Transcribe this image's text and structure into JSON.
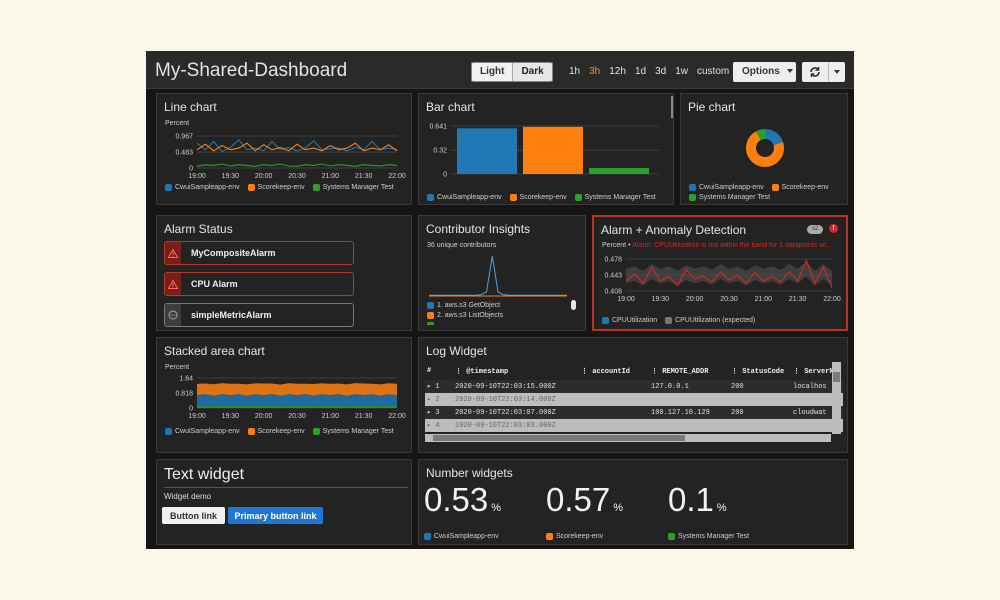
{
  "dashboard": {
    "title": "My-Shared-Dashboard",
    "theme_light": "Light",
    "theme_dark": "Dark",
    "time_ranges": [
      "1h",
      "3h",
      "12h",
      "1d",
      "3d",
      "1w"
    ],
    "active_time_range": "3h",
    "custom_label": "custom",
    "options_label": "Options",
    "accent_color": "#f0932b"
  },
  "series_names": [
    "CwuiSampleapp-env",
    "Scorekeep-env",
    "Systems Manager Test"
  ],
  "series_colors": [
    "#1f77b4",
    "#ff7f0e",
    "#2ca02c"
  ],
  "line_widget": {
    "title": "Line chart",
    "ylabel": "Percent",
    "chart_data": {
      "type": "line",
      "ylabel": "Percent",
      "ylim": [
        0,
        0.967
      ],
      "yticks": [
        "0.967",
        "0.483",
        "0"
      ],
      "x_ticks": [
        "19:00",
        "19:30",
        "20:00",
        "20:30",
        "21:00",
        "21:30",
        "22:00"
      ],
      "x": [
        0,
        1,
        2,
        3,
        4,
        5,
        6,
        7,
        8,
        9,
        10,
        11,
        12,
        13,
        14,
        15,
        16,
        17,
        18,
        19,
        20,
        21,
        22,
        23,
        24
      ],
      "series": [
        {
          "name": "CwuiSampleapp-env",
          "values": [
            0.75,
            0.55,
            0.8,
            0.5,
            0.62,
            0.85,
            0.55,
            0.6,
            0.52,
            0.8,
            0.56,
            0.62,
            0.52,
            0.6,
            0.82,
            0.55,
            0.58,
            0.6,
            0.52,
            0.62,
            0.56,
            0.8,
            0.56,
            0.6,
            0.55
          ]
        },
        {
          "name": "Scorekeep-env",
          "values": [
            0.55,
            0.72,
            0.52,
            0.68,
            0.55,
            0.6,
            0.75,
            0.52,
            0.7,
            0.55,
            0.62,
            0.52,
            0.72,
            0.55,
            0.6,
            0.52,
            0.68,
            0.55,
            0.6,
            0.75,
            0.52,
            0.6,
            0.55,
            0.7,
            0.52
          ]
        },
        {
          "name": "Systems Manager Test",
          "values": [
            0.05,
            0.1,
            0.08,
            0.12,
            0.06,
            0.1,
            0.08,
            0.05,
            0.1,
            0.08,
            0.12,
            0.06,
            0.05,
            0.1,
            0.08,
            0.12,
            0.06,
            0.1,
            0.08,
            0.05,
            0.1,
            0.08,
            0.06,
            0.1,
            0.08
          ]
        }
      ]
    }
  },
  "bar_widget": {
    "title": "Bar chart",
    "chart_data": {
      "type": "bar",
      "categories": [
        "CwuiSampleapp-env",
        "Scorekeep-env",
        "Systems Manager Test"
      ],
      "values": [
        0.61,
        0.63,
        0.08
      ],
      "ylim": [
        0,
        0.641
      ],
      "yticks": [
        "0.641",
        "0.32",
        "0"
      ]
    }
  },
  "pie_widget": {
    "title": "Pie chart",
    "chart_data": {
      "type": "pie",
      "categories": [
        "CwuiSampleapp-env",
        "Scorekeep-env",
        "Systems Manager Test"
      ],
      "values": [
        0.2,
        0.72,
        0.08
      ]
    }
  },
  "alarm_status": {
    "title": "Alarm Status",
    "alarms": [
      {
        "name": "MyCompositeAlarm",
        "state": "alarm"
      },
      {
        "name": "CPU Alarm",
        "state": "alarm"
      },
      {
        "name": "simpleMetricAlarm",
        "state": "insufficient"
      }
    ]
  },
  "contributor_insights": {
    "title": "Contributor Insights",
    "subtitle": "36 unique contributors",
    "legend": [
      "1. aws.s3 GetObject",
      "2. aws.s3 ListObjects"
    ],
    "legend_colors": [
      "#1f77b4",
      "#ff7f0e"
    ],
    "chart_data": {
      "type": "line",
      "series": [
        {
          "name": "1. aws.s3 GetObject",
          "values": [
            0.02,
            0.02,
            0.02,
            0.02,
            0.02,
            0.02,
            0.02,
            0.02,
            0.02,
            0.03,
            0.1,
            1.0,
            0.1,
            0.03,
            0.02,
            0.02,
            0.02,
            0.02,
            0.02,
            0.02,
            0.02,
            0.02,
            0.02,
            0.02,
            0.02
          ]
        },
        {
          "name": "2. aws.s3 ListObjects",
          "values": [
            0,
            0,
            0,
            0,
            0,
            0,
            0,
            0,
            0,
            0,
            0,
            0,
            0,
            0,
            0,
            0,
            0,
            0,
            0,
            0,
            0,
            0,
            0,
            0,
            0
          ]
        }
      ]
    }
  },
  "anomaly_widget": {
    "title": "Alarm + Anomaly Detection",
    "badge": "x2",
    "ylabel": "Percent",
    "alert_text": "Alarm: CPUUtilization is not within the band for 1 datapoints wi...",
    "legend": [
      "CPUUtilization",
      "CPUUtilization (expected)"
    ],
    "legend_colors": [
      "#1f77b4",
      "#777777"
    ],
    "alarm_color": "#d62728",
    "chart_data": {
      "type": "line",
      "ylabel": "Percent",
      "ylim": [
        0.408,
        0.478
      ],
      "yticks": [
        "0.478",
        "0.443",
        "0.408"
      ],
      "x_ticks": [
        "19:00",
        "19:30",
        "20:00",
        "20:30",
        "21:00",
        "21:30",
        "22:00"
      ],
      "series": [
        {
          "name": "CPUUtilization",
          "values": [
            0.43,
            0.445,
            0.425,
            0.46,
            0.43,
            0.44,
            0.42,
            0.455,
            0.435,
            0.44,
            0.428,
            0.45,
            0.432,
            0.442,
            0.425,
            0.448,
            0.43,
            0.44,
            0.428,
            0.45,
            0.43,
            0.475,
            0.425,
            0.46,
            0.415
          ]
        },
        {
          "name": "CPUUtilization (expected)",
          "values": [
            0.445,
            0.45,
            0.44,
            0.455,
            0.445,
            0.45,
            0.44,
            0.452,
            0.445,
            0.45,
            0.442,
            0.455,
            0.445,
            0.45,
            0.44,
            0.452,
            0.445,
            0.45,
            0.442,
            0.455,
            0.445,
            0.46,
            0.44,
            0.455,
            0.44
          ]
        }
      ]
    }
  },
  "stacked_widget": {
    "title": "Stacked area chart",
    "ylabel": "Percent",
    "chart_data": {
      "type": "area",
      "ylabel": "Percent",
      "ylim": [
        0,
        1.64
      ],
      "yticks": [
        "1.64",
        "0.818",
        "0"
      ],
      "x_ticks": [
        "19:00",
        "19:30",
        "20:00",
        "20:30",
        "21:00",
        "21:30",
        "22:00"
      ],
      "series": [
        {
          "name": "CwuiSampleapp-env",
          "values": [
            0.6,
            0.62,
            0.58,
            0.64,
            0.6,
            0.62,
            0.58,
            0.63,
            0.6,
            0.62,
            0.58,
            0.64,
            0.6,
            0.62,
            0.58,
            0.63,
            0.6,
            0.62,
            0.58,
            0.64,
            0.6,
            0.62,
            0.58,
            0.63,
            0.6
          ]
        },
        {
          "name": "Scorekeep-env",
          "values": [
            0.62,
            0.58,
            0.64,
            0.6,
            0.63,
            0.57,
            0.62,
            0.6,
            0.64,
            0.58,
            0.62,
            0.6,
            0.63,
            0.57,
            0.64,
            0.6,
            0.62,
            0.58,
            0.63,
            0.6,
            0.64,
            0.57,
            0.62,
            0.6,
            0.63
          ]
        },
        {
          "name": "Systems Manager Test",
          "values": [
            0.1,
            0.14,
            0.08,
            0.12,
            0.1,
            0.14,
            0.09,
            0.12,
            0.1,
            0.14,
            0.08,
            0.12,
            0.1,
            0.14,
            0.09,
            0.12,
            0.1,
            0.14,
            0.08,
            0.12,
            0.1,
            0.14,
            0.09,
            0.12,
            0.1
          ]
        }
      ]
    }
  },
  "log_widget": {
    "title": "Log Widget",
    "columns": [
      "#",
      "@timestamp",
      "accountId",
      "REMOTE_ADDR",
      "StatusCode",
      "ServerN"
    ],
    "rows": [
      [
        "1",
        "2020-09-10T22:03:15.000Z",
        "",
        "127.0.0.1",
        "200",
        "localhos"
      ],
      [
        "2",
        "2020-09-10T22:03:14.000Z",
        "",
        "",
        "",
        ""
      ],
      [
        "3",
        "2020-09-10T22:03:07.000Z",
        "",
        "100.127.10.129",
        "200",
        "cloudwat"
      ],
      [
        "4",
        "2020-09-10T22:03:03.000Z",
        "",
        "",
        "",
        ""
      ]
    ]
  },
  "text_widget": {
    "title": "Text widget",
    "subtitle": "Widget demo",
    "button_label": "Button link",
    "primary_label": "Primary button link"
  },
  "number_widget": {
    "title": "Number widgets",
    "items": [
      {
        "value": "0.53",
        "unit": "%",
        "label": "CwuiSampleapp-env"
      },
      {
        "value": "0.57",
        "unit": "%",
        "label": "Scorekeep-env"
      },
      {
        "value": "0.1",
        "unit": "%",
        "label": "Systems Manager Test"
      }
    ]
  }
}
